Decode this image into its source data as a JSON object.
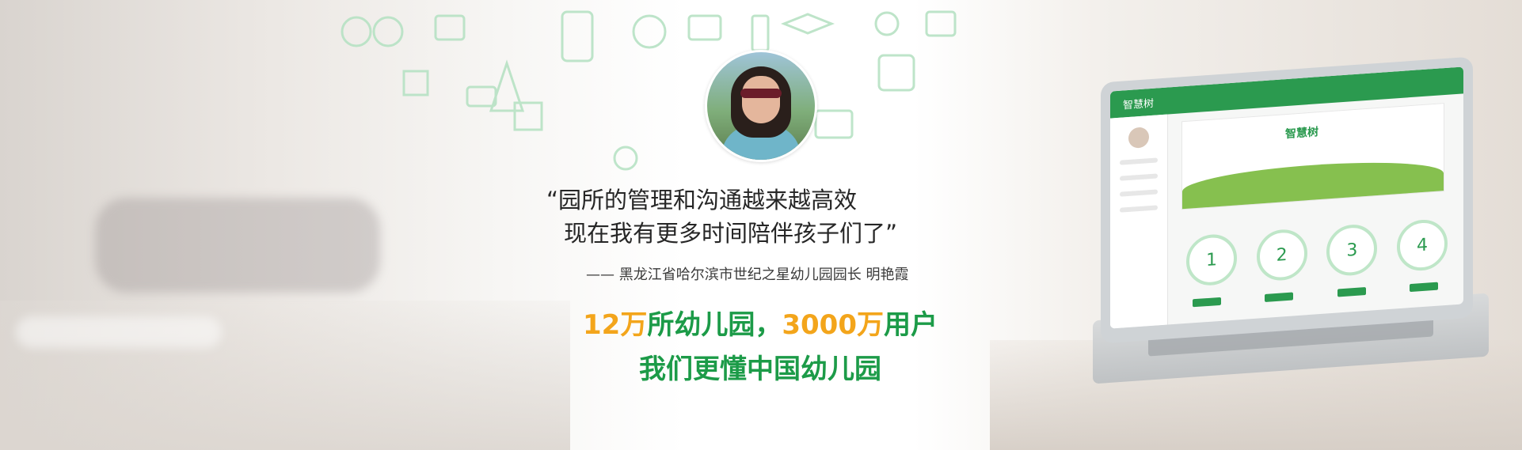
{
  "testimonial": {
    "quote_line1": "“园所的管理和沟通越来越高效",
    "quote_line2": "现在我有更多时间陪伴孩子们了”",
    "attribution": "—— 黑龙江省哈尔滨市世纪之星幼儿园园长  明艳霞"
  },
  "headline": {
    "part1_num": "12万",
    "part1_text": "所幼儿园，",
    "part2_num": "3000万",
    "part2_text": "用户",
    "line2": "我们更懂中国幼儿园"
  },
  "laptop": {
    "brand": "智慧树",
    "steps": [
      "1",
      "2",
      "3",
      "4"
    ]
  },
  "colors": {
    "accent_green": "#1c9b48",
    "accent_orange": "#f3a51b"
  }
}
